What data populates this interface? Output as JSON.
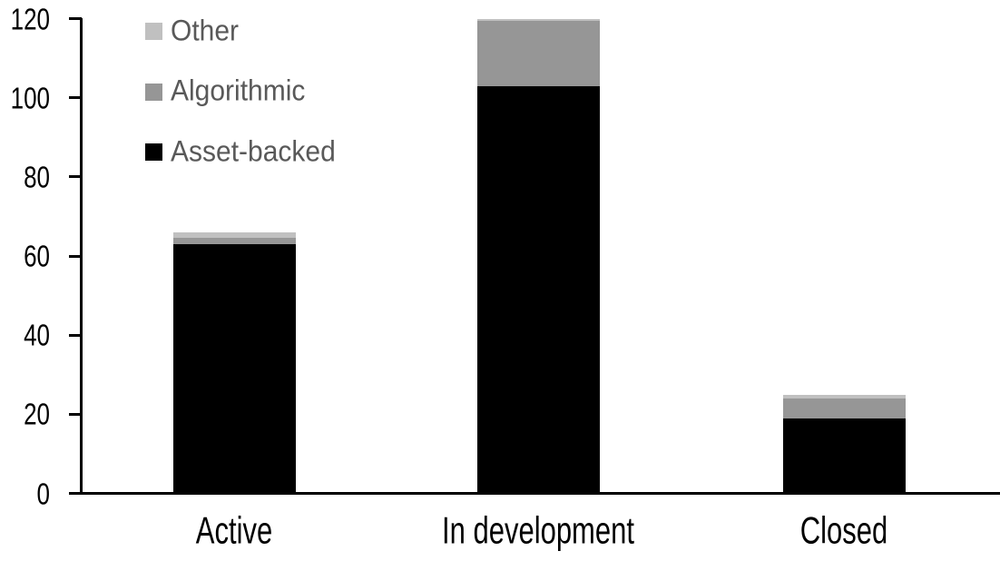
{
  "chart_data": {
    "type": "bar",
    "stacked": true,
    "title": "",
    "xlabel": "",
    "ylabel": "",
    "categories": [
      "Active",
      "In development",
      "Closed"
    ],
    "series": [
      {
        "name": "Asset-backed",
        "color": "#000000",
        "values": [
          63,
          103,
          19
        ]
      },
      {
        "name": "Algorithmic",
        "color": "#969696",
        "values": [
          1.5,
          16.5,
          5
        ]
      },
      {
        "name": "Other",
        "color": "#c0c0c0",
        "values": [
          1.5,
          0.5,
          1
        ]
      }
    ],
    "totals": [
      66,
      120,
      25
    ],
    "y_axis": {
      "min": 0,
      "max": 120,
      "step": 20,
      "tick_labels": [
        "0",
        "20",
        "40",
        "60",
        "80",
        "100",
        "120"
      ]
    },
    "legend": {
      "position": "top-left",
      "order_top_to_bottom": [
        "Other",
        "Algorithmic",
        "Asset-backed"
      ],
      "text_color": "#595959"
    },
    "grid": false,
    "axis_color": "#000000",
    "background_color": "#ffffff"
  }
}
